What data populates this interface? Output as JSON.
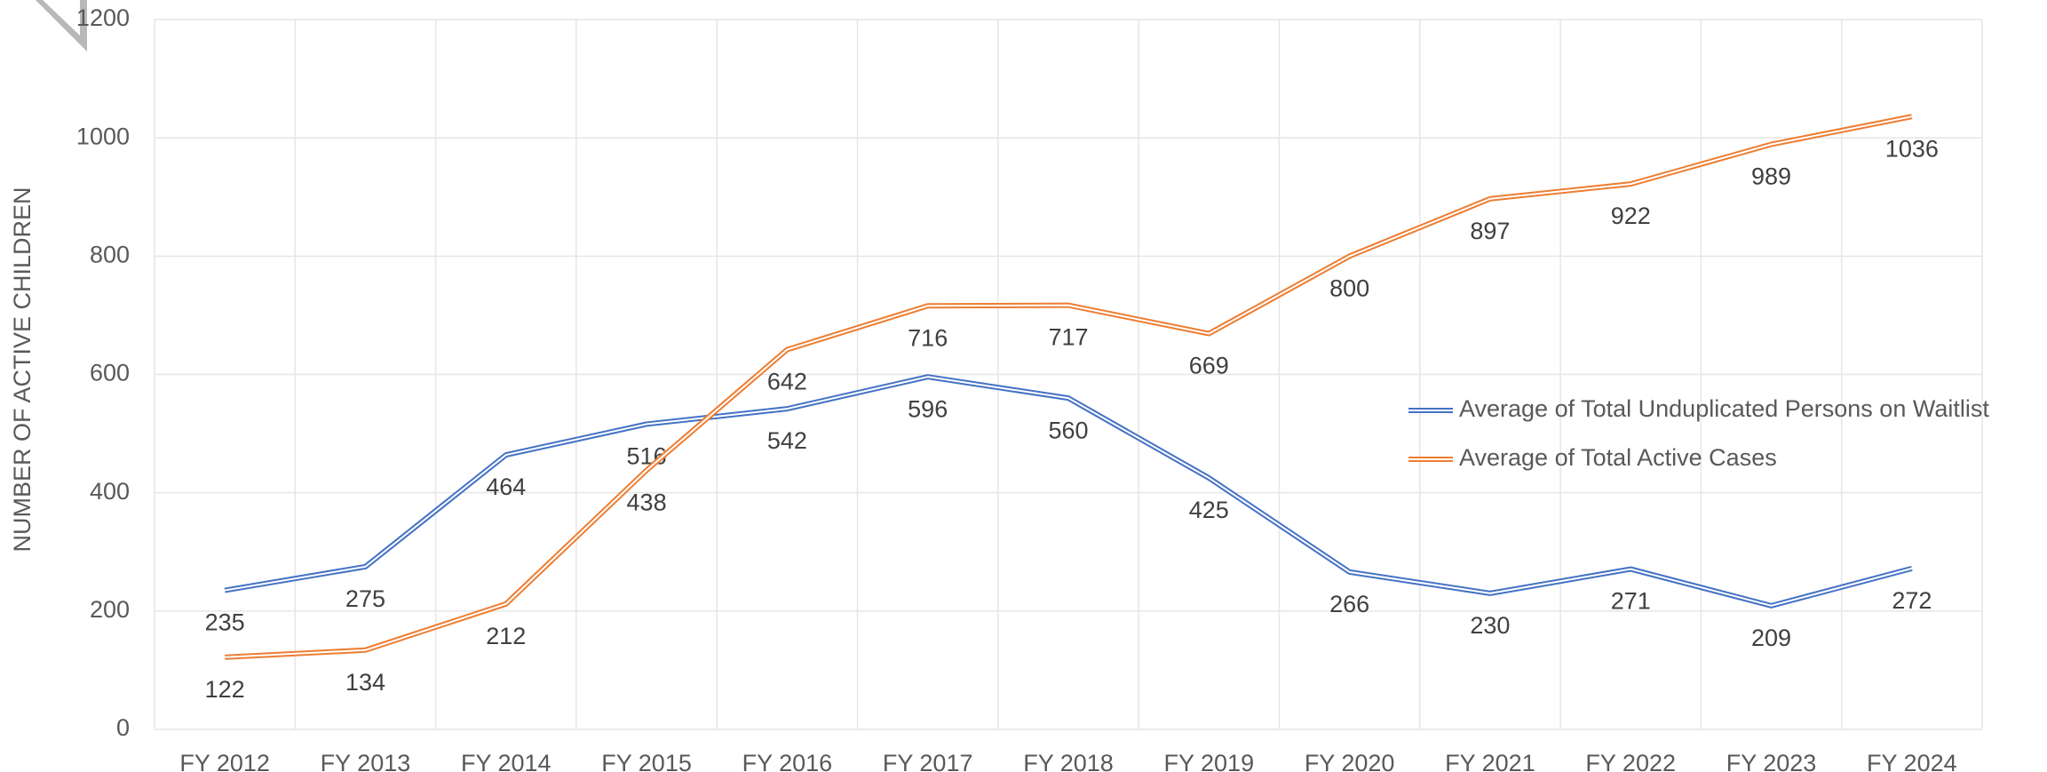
{
  "chart_data": {
    "type": "line",
    "y_axis_label": "NUMBER OF ACTIVE CHILDREN",
    "categories": [
      "FY 2012",
      "FY 2013",
      "FY 2014",
      "FY 2015",
      "FY 2016",
      "FY 2017",
      "FY 2018",
      "FY 2019",
      "FY 2020",
      "FY 2021",
      "FY 2022",
      "FY 2023",
      "FY 2024"
    ],
    "series": [
      {
        "name": "Average of Total Unduplicated Persons on Waitlist",
        "color": "#4472c4",
        "values": [
          235,
          275,
          464,
          516,
          542,
          596,
          560,
          425,
          266,
          230,
          271,
          209,
          272
        ]
      },
      {
        "name": "Average of Total Active Cases",
        "color": "#ed7d31",
        "values": [
          122,
          134,
          212,
          438,
          642,
          716,
          717,
          669,
          800,
          897,
          922,
          989,
          1036
        ]
      }
    ],
    "ylim": [
      0,
      1200
    ],
    "yticks": [
      0,
      200,
      400,
      600,
      800,
      1000,
      1200
    ],
    "grid": true,
    "legend": "right"
  }
}
